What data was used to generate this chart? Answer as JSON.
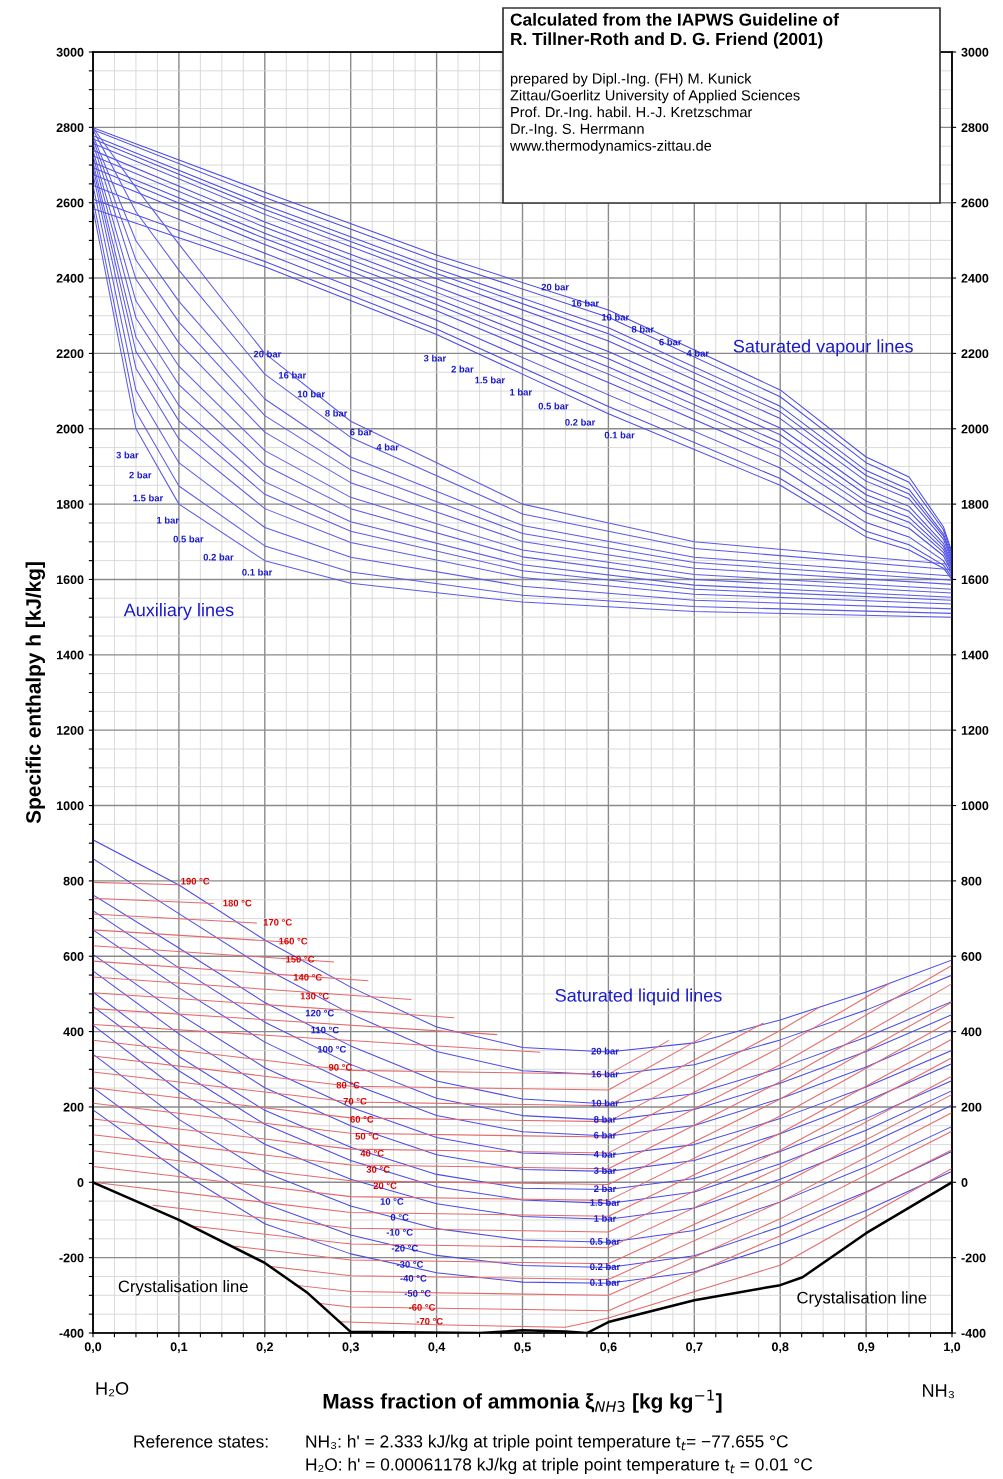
{
  "chart_data": {
    "type": "line",
    "title": "Calculated from the IAPWS Guideline of\nR. Tillner-Roth and D. G. Friend (2001)",
    "subtitle": "prepared by Dipl.-Ing. (FH) M. Kunick\nZittau/Goerlitz University of Applied Sciences\nProf. Dr.-Ing. habil. H.-J. Kretzschmar\nDr.-Ing. S. Herrmann\nwww.thermodynamics-zittau.de",
    "xlabel": "Mass fraction of ammonia ξ$_{NH3}$ [kg kg$^{−1}$]",
    "ylabel": "Specific enthalpy h [kJ/kg]",
    "xlim": [
      0,
      1
    ],
    "ylim": [
      -400,
      3000
    ],
    "y2lim": [
      -400,
      3000
    ],
    "xticks": [
      {
        "value": 0,
        "label": "0,0"
      },
      {
        "value": 0.025,
        "label": null
      },
      {
        "value": 0.05,
        "label": null
      },
      {
        "value": 0.075,
        "label": null
      },
      {
        "value": 0.1,
        "label": "0,1"
      },
      {
        "value": 0.125,
        "label": null
      },
      {
        "value": 0.15,
        "label": null
      },
      {
        "value": 0.175,
        "label": null
      },
      {
        "value": 0.2,
        "label": "0,2"
      },
      {
        "value": 0.225,
        "label": null
      },
      {
        "value": 0.25,
        "label": null
      },
      {
        "value": 0.275,
        "label": null
      },
      {
        "value": 0.3,
        "label": "0,3"
      },
      {
        "value": 0.325,
        "label": null
      },
      {
        "value": 0.35,
        "label": null
      },
      {
        "value": 0.375,
        "label": null
      },
      {
        "value": 0.4,
        "label": "0,4"
      },
      {
        "value": 0.425,
        "label": null
      },
      {
        "value": 0.45,
        "label": null
      },
      {
        "value": 0.475,
        "label": null
      },
      {
        "value": 0.5,
        "label": "0,5"
      },
      {
        "value": 0.525,
        "label": null
      },
      {
        "value": 0.55,
        "label": null
      },
      {
        "value": 0.575,
        "label": null
      },
      {
        "value": 0.6,
        "label": "0,6"
      },
      {
        "value": 0.625,
        "label": null
      },
      {
        "value": 0.65,
        "label": null
      },
      {
        "value": 0.675,
        "label": null
      },
      {
        "value": 0.7,
        "label": "0,7"
      },
      {
        "value": 0.725,
        "label": null
      },
      {
        "value": 0.75,
        "label": null
      },
      {
        "value": 0.775,
        "label": null
      },
      {
        "value": 0.8,
        "label": "0,8"
      },
      {
        "value": 0.825,
        "label": null
      },
      {
        "value": 0.85,
        "label": null
      },
      {
        "value": 0.875,
        "label": null
      },
      {
        "value": 0.9,
        "label": "0,9"
      },
      {
        "value": 0.925,
        "label": null
      },
      {
        "value": 0.95,
        "label": null
      },
      {
        "value": 0.975,
        "label": null
      },
      {
        "value": 1,
        "label": "1,0"
      }
    ],
    "yticks": [
      -400,
      {
        "value": -350,
        "label": null
      },
      {
        "value": -300,
        "label": null
      },
      {
        "value": -250,
        "label": null
      },
      -200,
      {
        "value": -150,
        "label": null
      },
      {
        "value": -100,
        "label": null
      },
      {
        "value": -50,
        "label": null
      },
      0,
      {
        "value": 50,
        "label": null
      },
      {
        "value": 100,
        "label": null
      },
      {
        "value": 150,
        "label": null
      },
      200,
      {
        "value": 250,
        "label": null
      },
      {
        "value": 300,
        "label": null
      },
      {
        "value": 350,
        "label": null
      },
      400,
      {
        "value": 450,
        "label": null
      },
      {
        "value": 500,
        "label": null
      },
      {
        "value": 550,
        "label": null
      },
      600,
      {
        "value": 650,
        "label": null
      },
      {
        "value": 700,
        "label": null
      },
      {
        "value": 750,
        "label": null
      },
      800,
      {
        "value": 850,
        "label": null
      },
      {
        "value": 900,
        "label": null
      },
      {
        "value": 950,
        "label": null
      },
      1000,
      {
        "value": 1050,
        "label": null
      },
      {
        "value": 1100,
        "label": null
      },
      {
        "value": 1150,
        "label": null
      },
      1200,
      {
        "value": 1250,
        "label": null
      },
      {
        "value": 1300,
        "label": null
      },
      {
        "value": 1350,
        "label": null
      },
      1400,
      {
        "value": 1450,
        "label": null
      },
      {
        "value": 1500,
        "label": null
      },
      {
        "value": 1550,
        "label": null
      },
      1600,
      {
        "value": 1650,
        "label": null
      },
      {
        "value": 1700,
        "label": null
      },
      {
        "value": 1750,
        "label": null
      },
      1800,
      {
        "value": 1850,
        "label": null
      },
      {
        "value": 1900,
        "label": null
      },
      {
        "value": 1950,
        "label": null
      },
      2000,
      {
        "value": 2050,
        "label": null
      },
      {
        "value": 2100,
        "label": null
      },
      {
        "value": 2150,
        "label": null
      },
      2200,
      {
        "value": 2250,
        "label": null
      },
      {
        "value": 2300,
        "label": null
      },
      {
        "value": 2350,
        "label": null
      },
      2400,
      {
        "value": 2450,
        "label": null
      },
      {
        "value": 2500,
        "label": null
      },
      {
        "value": 2550,
        "label": null
      },
      2600,
      {
        "value": 2650,
        "label": null
      },
      {
        "value": 2700,
        "label": null
      },
      {
        "value": 2750,
        "label": null
      },
      2800,
      {
        "value": 2850,
        "label": null
      },
      {
        "value": 2900,
        "label": null
      },
      {
        "value": 2950,
        "label": null
      },
      3000
    ],
    "y2ticks": [
      -400,
      -200,
      0,
      200,
      400,
      600,
      800,
      1000,
      1200,
      1400,
      1600,
      1800,
      2000,
      2200,
      2400,
      2600,
      2800,
      3000
    ],
    "grid": true,
    "line_style": "solid",
    "series": [
      {
        "color": "#4b4be6",
        "x": [
          0,
          0.2,
          0.4,
          0.6,
          0.8,
          0.9,
          0.95,
          0.99,
          1.0
        ],
        "values": [
          2799,
          2628,
          2461,
          2315,
          2103,
          1925,
          1872,
          1740,
          1672
        ]
      },
      {
        "color": "#4b4be6",
        "x": [
          0,
          0.2,
          0.4,
          0.6,
          0.8,
          0.9,
          0.95,
          0.99,
          1.0
        ],
        "values": [
          2794,
          2614,
          2446,
          2296,
          2085,
          1910,
          1858,
          1732,
          1666
        ]
      },
      {
        "color": "#4b4be6",
        "x": [
          0,
          0.2,
          0.4,
          0.6,
          0.8,
          0.9,
          0.95,
          0.99,
          1.0
        ],
        "values": [
          2778,
          2594,
          2425,
          2268,
          2060,
          1889,
          1839,
          1721,
          1660
        ]
      },
      {
        "color": "#4b4be6",
        "x": [
          0,
          0.2,
          0.4,
          0.6,
          0.8,
          0.9,
          0.95,
          0.99,
          1.0
        ],
        "values": [
          2769,
          2582,
          2412,
          2252,
          2045,
          1876,
          1827,
          1715,
          1654
        ]
      },
      {
        "color": "#4b4be6",
        "x": [
          0,
          0.2,
          0.4,
          0.6,
          0.8,
          0.9,
          0.95,
          0.99,
          1.0
        ],
        "values": [
          2757,
          2569,
          2398,
          2233,
          2027,
          1861,
          1814,
          1707,
          1648
        ]
      },
      {
        "color": "#4b4be6",
        "x": [
          0,
          0.2,
          0.4,
          0.6,
          0.8,
          0.9,
          0.95,
          0.99,
          1.0
        ],
        "values": [
          2739,
          2549,
          2377,
          2205,
          2002,
          1840,
          1794,
          1696,
          1642
        ]
      },
      {
        "color": "#4b4be6",
        "x": [
          0,
          0.2,
          0.4,
          0.6,
          0.8,
          0.9,
          0.95,
          0.99,
          1.0
        ],
        "values": [
          2725,
          2535,
          2362,
          2186,
          1984,
          1825,
          1781,
          1688,
          1636
        ]
      },
      {
        "color": "#4b4be6",
        "x": [
          0,
          0.2,
          0.4,
          0.6,
          0.8,
          0.9,
          0.95,
          0.99,
          1.0
        ],
        "values": [
          2707,
          2519,
          2345,
          2164,
          1964,
          1808,
          1765,
          1680,
          1630
        ]
      },
      {
        "color": "#4b4be6",
        "x": [
          0,
          0.2,
          0.4,
          0.6,
          0.8,
          0.9,
          0.95,
          0.99,
          1.0
        ],
        "values": [
          2693,
          2505,
          2330,
          2145,
          1946,
          1794,
          1752,
          1672,
          1624
        ]
      },
      {
        "color": "#4b4be6",
        "x": [
          0,
          0.2,
          0.4,
          0.6,
          0.8,
          0.9,
          0.95,
          0.99,
          1.0
        ],
        "values": [
          2675,
          2489,
          2313,
          2123,
          1926,
          1777,
          1736,
          1663,
          1618
        ]
      },
      {
        "color": "#4b4be6",
        "x": [
          0,
          0.2,
          0.4,
          0.6,
          0.8,
          0.9,
          0.95,
          0.99,
          1.0
        ],
        "values": [
          2646,
          2466,
          2288,
          2090,
          1896,
          1751,
          1713,
          1650,
          1612
        ]
      },
      {
        "color": "#4b4be6",
        "x": [
          0,
          0.2,
          0.4,
          0.6,
          0.8,
          0.9,
          0.95,
          0.99,
          1.0
        ],
        "values": [
          2609,
          2444,
          2265,
          2059,
          1868,
          1728,
          1692,
          1638,
          1606
        ]
      },
      {
        "color": "#4b4be6",
        "x": [
          0,
          0.2,
          0.4,
          0.6,
          0.8,
          0.9,
          0.95,
          0.99,
          1.0
        ],
        "values": [
          2584,
          2430,
          2250,
          2040,
          1850,
          1713,
          1678,
          1630,
          1600
        ]
      },
      {
        "color": "#5a5ae8",
        "x": [
          0,
          0.05,
          0.1,
          0.2,
          0.3,
          0.5,
          0.7,
          1.0
        ],
        "values": [
          2799,
          2640,
          2490,
          2200,
          2020,
          1800,
          1700,
          1640
        ]
      },
      {
        "color": "#5a5ae8",
        "x": [
          0,
          0.05,
          0.1,
          0.2,
          0.3,
          0.5,
          0.7,
          1.0
        ],
        "values": [
          2794,
          2576,
          2421,
          2145,
          1977,
          1774,
          1682,
          1626
        ]
      },
      {
        "color": "#5a5ae8",
        "x": [
          0,
          0.05,
          0.1,
          0.2,
          0.3,
          0.5,
          0.7,
          1.0
        ],
        "values": [
          2778,
          2499,
          2338,
          2079,
          1925,
          1743,
          1659,
          1609
        ]
      },
      {
        "color": "#5a5ae8",
        "x": [
          0,
          0.05,
          0.1,
          0.2,
          0.3,
          0.5,
          0.7,
          1.0
        ],
        "values": [
          2769,
          2448,
          2283,
          2035,
          1891,
          1722,
          1645,
          1598
        ]
      },
      {
        "color": "#5a5ae8",
        "x": [
          0,
          0.05,
          0.1,
          0.2,
          0.3,
          0.5,
          0.7,
          1.0
        ],
        "values": [
          2757,
          2397,
          2228,
          1991,
          1857,
          1701,
          1630,
          1587
        ]
      },
      {
        "color": "#5a5ae8",
        "x": [
          0,
          0.05,
          0.1,
          0.2,
          0.3,
          0.5,
          0.7,
          1.0
        ],
        "values": [
          2739,
          2339,
          2166,
          1942,
          1818,
          1678,
          1613,
          1574
        ]
      },
      {
        "color": "#5a5ae8",
        "x": [
          0,
          0.05,
          0.1,
          0.2,
          0.3,
          0.5,
          0.7,
          1.0
        ],
        "values": [
          2725,
          2294,
          2117,
          1903,
          1788,
          1660,
          1600,
          1564
        ]
      },
      {
        "color": "#5a5ae8",
        "x": [
          0,
          0.05,
          0.1,
          0.2,
          0.3,
          0.5,
          0.7,
          1.0
        ],
        "values": [
          2707,
          2243,
          2062,
          1859,
          1753,
          1639,
          1585,
          1553
        ]
      },
      {
        "color": "#5a5ae8",
        "x": [
          0,
          0.05,
          0.1,
          0.2,
          0.3,
          0.5,
          0.7,
          1.0
        ],
        "values": [
          2693,
          2205,
          2021,
          1826,
          1728,
          1623,
          1574,
          1545
        ]
      },
      {
        "color": "#5a5ae8",
        "x": [
          0,
          0.05,
          0.1,
          0.2,
          0.3,
          0.5,
          0.7,
          1.0
        ],
        "values": [
          2675,
          2160,
          1973,
          1788,
          1698,
          1605,
          1561,
          1535
        ]
      },
      {
        "color": "#5a5ae8",
        "x": [
          0,
          0.05,
          0.1,
          0.2,
          0.3,
          0.5,
          0.7,
          1.0
        ],
        "values": [
          2646,
          2102,
          1910,
          1738,
          1659,
          1582,
          1545,
          1522
        ]
      },
      {
        "color": "#5a5ae8",
        "x": [
          0,
          0.05,
          0.1,
          0.2,
          0.3,
          0.5,
          0.7,
          1.0
        ],
        "values": [
          2609,
          2045,
          1848,
          1689,
          1620,
          1558,
          1528,
          1510
        ]
      },
      {
        "color": "#5a5ae8",
        "x": [
          0,
          0.05,
          0.1,
          0.2,
          0.3,
          0.5,
          0.7,
          1.0
        ],
        "values": [
          2584,
          2000,
          1800,
          1650,
          1590,
          1540,
          1515,
          1500
        ]
      },
      {
        "color": "#4b4be6",
        "x": [
          0,
          0.1,
          0.2,
          0.3,
          0.4,
          0.5,
          0.6,
          0.7,
          0.8,
          0.9,
          1.0
        ],
        "values": [
          909,
          789,
          643,
          518,
          412,
          358,
          346,
          370,
          431,
          505,
          590
        ]
      },
      {
        "color": "#4b4be6",
        "x": [
          0,
          0.1,
          0.2,
          0.3,
          0.4,
          0.5,
          0.6,
          0.7,
          0.8,
          0.9,
          1.0
        ],
        "values": [
          859,
          713,
          568,
          447,
          347,
          296,
          285,
          312,
          378,
          457,
          550
        ]
      },
      {
        "color": "#4b4be6",
        "x": [
          0,
          0.1,
          0.2,
          0.3,
          0.4,
          0.5,
          0.6,
          0.7,
          0.8,
          0.9,
          1.0
        ],
        "values": [
          763,
          622,
          477,
          362,
          269,
          221,
          208,
          235,
          303,
          385,
          480
        ]
      },
      {
        "color": "#4b4be6",
        "x": [
          0,
          0.1,
          0.2,
          0.3,
          0.4,
          0.5,
          0.6,
          0.7,
          0.8,
          0.9,
          1.0
        ],
        "values": [
          721,
          569,
          425,
          313,
          223,
          177,
          165,
          193,
          263,
          347,
          445
        ]
      },
      {
        "color": "#4b4be6",
        "x": [
          0,
          0.1,
          0.2,
          0.3,
          0.4,
          0.5,
          0.6,
          0.7,
          0.8,
          0.9,
          1.0
        ],
        "values": [
          670,
          516,
          372,
          263,
          177,
          134,
          123,
          151,
          222,
          306,
          405
        ]
      },
      {
        "color": "#4b4be6",
        "x": [
          0,
          0.1,
          0.2,
          0.3,
          0.4,
          0.5,
          0.6,
          0.7,
          0.8,
          0.9,
          1.0
        ],
        "values": [
          605,
          447,
          304,
          199,
          119,
          78,
          72,
          100,
          169,
          253,
          350
        ]
      },
      {
        "color": "#4b4be6",
        "x": [
          0,
          0.1,
          0.2,
          0.3,
          0.4,
          0.5,
          0.6,
          0.7,
          0.8,
          0.9,
          1.0
        ],
        "values": [
          561,
          394,
          251,
          150,
          73,
          34,
          29,
          58,
          129,
          215,
          315
        ]
      },
      {
        "color": "#4b4be6",
        "x": [
          0,
          0.1,
          0.2,
          0.3,
          0.4,
          0.5,
          0.6,
          0.7,
          0.8,
          0.9,
          1.0
        ],
        "values": [
          505,
          334,
          191,
          93,
          21,
          -16,
          -19,
          10,
          82,
          169,
          270
        ]
      },
      {
        "color": "#4b4be6",
        "x": [
          0,
          0.1,
          0.2,
          0.3,
          0.4,
          0.5,
          0.6,
          0.7,
          0.8,
          0.9,
          1.0
        ],
        "values": [
          467,
          296,
          154,
          58,
          -12,
          -47,
          -56,
          -26,
          49,
          138,
          243
        ]
      },
      {
        "color": "#4b4be6",
        "x": [
          0,
          0.1,
          0.2,
          0.3,
          0.4,
          0.5,
          0.6,
          0.7,
          0.8,
          0.9,
          1.0
        ],
        "values": [
          417,
          243,
          101,
          8,
          -57,
          -91,
          -98,
          -68,
          8,
          99,
          205
        ]
      },
      {
        "color": "#4b4be6",
        "x": [
          0,
          0.1,
          0.2,
          0.3,
          0.4,
          0.5,
          0.6,
          0.7,
          0.8,
          0.9,
          1.0
        ],
        "values": [
          340,
          167,
          26,
          -63,
          -123,
          -153,
          -159,
          -128,
          -52,
          41,
          148
        ]
      },
      {
        "color": "#4b4be6",
        "x": [
          0,
          0.1,
          0.2,
          0.3,
          0.4,
          0.5,
          0.6,
          0.7,
          0.8,
          0.9,
          1.0
        ],
        "values": [
          251,
          83,
          -57,
          -140,
          -194,
          -221,
          -226,
          -195,
          -118,
          -26,
          82
        ]
      },
      {
        "color": "#4b4be6",
        "x": [
          0,
          0.1,
          0.2,
          0.3,
          0.4,
          0.5,
          0.6,
          0.7,
          0.8,
          0.9,
          1.0
        ],
        "values": [
          192,
          30,
          -110,
          -190,
          -240,
          -265,
          -268,
          -238,
          -164,
          -75,
          29
        ]
      },
      {
        "color": "#e36a6a",
        "x": [
          0,
          0.1
        ],
        "values": [
          796,
          790
        ]
      },
      {
        "color": "#e36a6a",
        "x": [
          0,
          0.14
        ],
        "values": [
          754,
          740
        ]
      },
      {
        "color": "#e36a6a",
        "x": [
          0,
          0.19
        ],
        "values": [
          712,
          688
        ]
      },
      {
        "color": "#e36a6a",
        "x": [
          0,
          0.23
        ],
        "values": [
          670,
          637
        ]
      },
      {
        "color": "#e36a6a",
        "x": [
          0,
          0.28
        ],
        "values": [
          628,
          585
        ]
      },
      {
        "color": "#e36a6a",
        "x": [
          0,
          0.32
        ],
        "values": [
          587,
          535
        ]
      },
      {
        "color": "#e36a6a",
        "x": [
          0,
          0.37
        ],
        "values": [
          545,
          485
        ]
      },
      {
        "color": "#e36a6a",
        "x": [
          0,
          0.42
        ],
        "values": [
          503,
          437
        ]
      },
      {
        "color": "#e36a6a",
        "x": [
          0,
          0.47
        ],
        "values": [
          461,
          392
        ]
      },
      {
        "color": "#e36a6a",
        "x": [
          0,
          0.52
        ],
        "values": [
          419,
          345
        ]
      },
      {
        "color": "#e36a6a",
        "x": [
          0,
          0.3,
          0.6,
          0.67
        ],
        "values": [
          377,
          297,
          287,
          376
        ]
      },
      {
        "color": "#e36a6a",
        "x": [
          0,
          0.3,
          0.6,
          0.72
        ],
        "values": [
          335,
          255,
          245,
          398
        ]
      },
      {
        "color": "#e36a6a",
        "x": [
          0,
          0.3,
          0.6,
          0.78
        ],
        "values": [
          293,
          213,
          203,
          422
        ]
      },
      {
        "color": "#e36a6a",
        "x": [
          0,
          0.3,
          0.6,
          0.8,
          0.846
        ],
        "values": [
          251,
          171,
          161,
          403,
          465
        ]
      },
      {
        "color": "#e36a6a",
        "x": [
          0,
          0.3,
          0.6,
          0.8,
          0.9,
          0.928
        ],
        "values": [
          210,
          130,
          120,
          358,
          491,
          529
        ]
      },
      {
        "color": "#e36a6a",
        "x": [
          0,
          0.3,
          0.6,
          0.8,
          1.0
        ],
        "values": [
          168,
          88,
          78,
          312,
          576
        ]
      },
      {
        "color": "#e36a6a",
        "x": [
          0,
          0.3,
          0.6,
          0.8,
          1.0
        ],
        "values": [
          126,
          46,
          36,
          267,
          527
        ]
      },
      {
        "color": "#e36a6a",
        "x": [
          0,
          0.3,
          0.6,
          0.8,
          1.0
        ],
        "values": [
          84,
          4,
          -6,
          221,
          478
        ]
      },
      {
        "color": "#e36a6a",
        "x": [
          0,
          0.3,
          0.6,
          0.8,
          1.0
        ],
        "values": [
          42,
          -38,
          -48,
          176,
          429
        ]
      },
      {
        "color": "#e36a6a",
        "x": [
          0,
          0.3,
          0.6,
          0.8,
          1.0
        ],
        "values": [
          0,
          -80,
          -90,
          130,
          380
        ]
      },
      {
        "color": "#e36a6a",
        "x": [
          0.07,
          0.3,
          0.6,
          0.8,
          1.0
        ],
        "values": [
          -61,
          -122,
          -132,
          85,
          331
        ]
      },
      {
        "color": "#e36a6a",
        "x": [
          0.115,
          0.3,
          0.6,
          0.8,
          1.0
        ],
        "values": [
          -116,
          -164,
          -174,
          39,
          282
        ]
      },
      {
        "color": "#e36a6a",
        "x": [
          0.165,
          0.3,
          0.6,
          0.8,
          1.0
        ],
        "values": [
          -170,
          -206,
          -216,
          -7,
          233
        ]
      },
      {
        "color": "#e36a6a",
        "x": [
          0.205,
          0.3,
          0.6,
          0.8,
          1.0
        ],
        "values": [
          -223,
          -248,
          -258,
          -52,
          185
        ]
      },
      {
        "color": "#e36a6a",
        "x": [
          0.235,
          0.3,
          0.6,
          0.8,
          1.0
        ],
        "values": [
          -273,
          -290,
          -300,
          -97,
          136
        ]
      },
      {
        "color": "#e36a6a",
        "x": [
          0.265,
          0.3,
          0.6,
          0.8,
          1.0
        ],
        "values": [
          -322,
          -331,
          -341,
          -142,
          86
        ]
      },
      {
        "color": "#e36a6a",
        "x": [
          0.287,
          0.4,
          0.55,
          0.6,
          0.8,
          1.0
        ],
        "values": [
          -370,
          -378,
          -385,
          -360,
          -220,
          37
        ]
      },
      {
        "color": "#000000",
        "x": [
          0,
          0.1,
          0.2,
          0.25,
          0.3,
          0.45,
          0.5,
          0.55,
          0.575,
          0.6,
          0.7,
          0.8,
          0.826,
          0.9,
          1.0
        ],
        "values": [
          0,
          -100,
          -214,
          -294,
          -397,
          -400,
          -393,
          -396,
          -400,
          -371,
          -313,
          -273,
          -252,
          -135,
          0
        ]
      }
    ],
    "annotations": [
      "H₂O",
      "NH₃",
      "Reference states:",
      "NH₃: h' = 2.333 kJ/kg at triple point temperature t$_{t}$= −77.655 °C",
      "H₂O: h' = 0.00061178 kJ/kg at triple point temperature t$_{t}$ = 0.01 °C",
      "Saturated vapour lines",
      "Auxiliary lines",
      "Saturated liquid lines",
      "Crystalisation line",
      "Crystalisation line",
      "3 bar",
      "2 bar",
      "1.5 bar",
      "1 bar",
      "0.5 bar",
      "0.2 bar",
      "0.1 bar",
      "6 bar",
      "3 bar",
      "2 bar",
      "1.5 bar",
      "1 bar",
      "0.5 bar",
      "0.2 bar",
      "0.1 bar",
      "190 °C",
      "180 °C",
      "170 °C",
      {
        "text": "20 bar",
        "x": 0.538,
        "y": 2374
      },
      {
        "text": "16 bar",
        "x": 0.573,
        "y": 2331
      },
      {
        "text": "10 bar",
        "x": 0.608,
        "y": 2294
      },
      {
        "text": "8 bar",
        "x": 0.64,
        "y": 2262
      },
      {
        "text": "6 bar",
        "x": 0.672,
        "y": 2228
      },
      {
        "text": "4 bar",
        "x": 0.704,
        "y": 2198
      },
      {
        "text": "20 bar",
        "x": 0.203,
        "y": 2196
      },
      {
        "text": "16 bar",
        "x": 0.232,
        "y": 2140
      },
      {
        "text": "10 bar",
        "x": 0.254,
        "y": 2090
      },
      {
        "text": "8 bar",
        "x": 0.283,
        "y": 2039
      },
      {
        "text": "4 bar",
        "x": 0.343,
        "y": 1949
      },
      {
        "text": "20 bar",
        "x": 0.596,
        "y": 346
      },
      {
        "text": "16 bar",
        "x": 0.596,
        "y": 285
      },
      {
        "text": "10 bar",
        "x": 0.596,
        "y": 208
      },
      {
        "text": "8 bar",
        "x": 0.596,
        "y": 165
      },
      {
        "text": "6 bar",
        "x": 0.596,
        "y": 123
      },
      {
        "text": "4 bar",
        "x": 0.596,
        "y": 72
      },
      {
        "text": "3 bar",
        "x": 0.596,
        "y": 29
      },
      {
        "text": "2 bar",
        "x": 0.596,
        "y": -19
      },
      {
        "text": "1.5 bar",
        "x": 0.596,
        "y": -56
      },
      {
        "text": "1 bar",
        "x": 0.596,
        "y": -98
      },
      {
        "text": "0.5 bar",
        "x": 0.596,
        "y": -159
      },
      {
        "text": "0.2 bar",
        "x": 0.596,
        "y": -226
      },
      {
        "text": "0.1 bar",
        "x": 0.596,
        "y": -268
      },
      {
        "text": "160 °C",
        "x": 0.233,
        "y": 638
      },
      {
        "text": "150 °C",
        "x": 0.241,
        "y": 590
      },
      {
        "text": "140 °C",
        "x": 0.25,
        "y": 542
      },
      {
        "text": "130 °C",
        "x": 0.258,
        "y": 492
      },
      {
        "text": "120 °C",
        "x": 0.264,
        "y": 447
      },
      {
        "text": "110 °C",
        "x": 0.27,
        "y": 402
      },
      {
        "text": "100 °C",
        "x": 0.278,
        "y": 351
      },
      {
        "text": "90 °C",
        "x": 0.288,
        "y": 303
      },
      {
        "text": "80 °C",
        "x": 0.297,
        "y": 256
      },
      {
        "text": "70 °C",
        "x": 0.305,
        "y": 213
      },
      {
        "text": "60 °C",
        "x": 0.313,
        "y": 165
      },
      {
        "text": "50 °C",
        "x": 0.319,
        "y": 120
      },
      {
        "text": "40 °C",
        "x": 0.325,
        "y": 75
      },
      {
        "text": "30 °C",
        "x": 0.332,
        "y": 32
      },
      {
        "text": "20 °C",
        "x": 0.34,
        "y": -11
      },
      {
        "text": "10 °C",
        "x": 0.348,
        "y": -53
      },
      {
        "text": "0 °C",
        "x": 0.357,
        "y": -95
      },
      {
        "text": "-10 °C",
        "x": 0.357,
        "y": -135
      },
      {
        "text": "-20 °C",
        "x": 0.363,
        "y": -177
      },
      {
        "text": "-30 °C",
        "x": 0.369,
        "y": -220
      },
      {
        "text": "-40 °C",
        "x": 0.373,
        "y": -257
      },
      {
        "text": "-50 °C",
        "x": 0.378,
        "y": -297
      },
      {
        "text": "-60 °C",
        "x": 0.383,
        "y": -334
      },
      {
        "text": "-70 °C",
        "x": 0.392,
        "y": -371
      }
    ]
  }
}
